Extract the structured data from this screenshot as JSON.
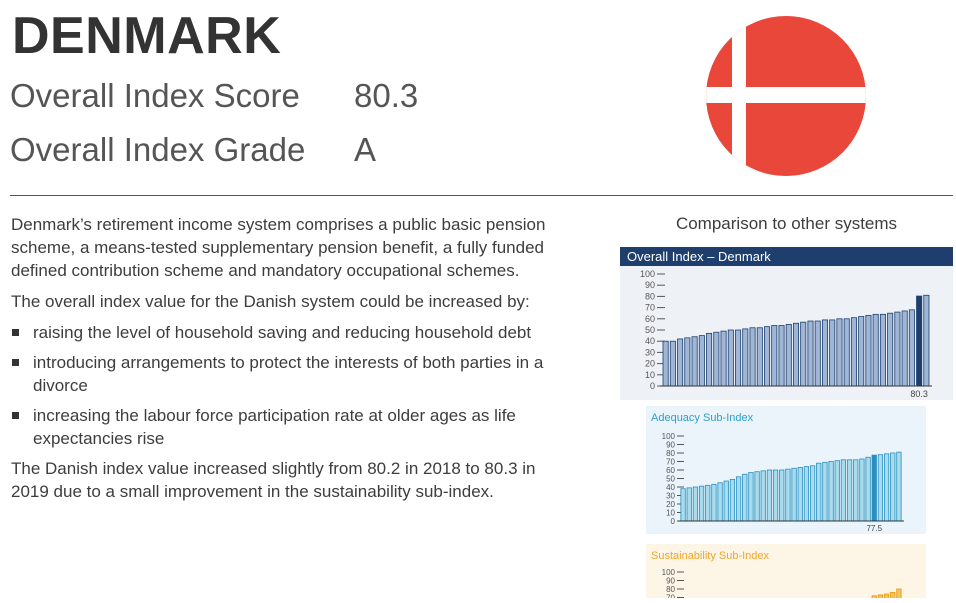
{
  "header": {
    "country": "DENMARK",
    "score_label": "Overall Index Score",
    "score_value": "80.3",
    "grade_label": "Overall Index Grade",
    "grade_value": "A"
  },
  "flag": {
    "red": "#e8473a",
    "white": "#ffffff"
  },
  "body": {
    "intro": "Denmark’s retirement income system comprises a public basic pension scheme, a means-tested supplementary pension benefit, a fully funded defined contribution scheme and mandatory occupational schemes.",
    "increase_lead": "The overall index value for the Danish system could be increased by:",
    "bullets": [
      "raising the level of household saving and reducing household debt",
      "introducing arrangements to protect the interests of both parties in a divorce",
      "increasing the labour force participation rate at older ages as life expectancies rise"
    ],
    "closing": "The Danish index value increased slightly from 80.2 in 2018 to 80.3 in 2019 due to a small improvement in the sustainability sub-index."
  },
  "comparison_title": "Comparison to other systems",
  "chart_data": [
    {
      "type": "bar",
      "title": "Overall Index – Denmark",
      "ylim": [
        0,
        100
      ],
      "yticks": [
        "100",
        "90",
        "80",
        "70",
        "60",
        "50",
        "40",
        "30",
        "20",
        "10",
        "0"
      ],
      "highlight_label": "80.3",
      "highlight_index": 35,
      "colors": {
        "bar": "#9fb6d6",
        "bar_edge": "#1e3f6e",
        "highlight": "#1e3f6e"
      },
      "values": [
        40,
        40,
        42,
        43,
        44,
        45,
        47,
        48,
        49,
        50,
        50,
        51,
        52,
        52,
        53,
        54,
        54,
        55,
        56,
        57,
        58,
        58,
        59,
        59,
        60,
        60,
        61,
        62,
        63,
        64,
        64,
        65,
        66,
        67,
        68,
        80.3,
        81
      ]
    },
    {
      "type": "bar",
      "title": "Adequacy Sub-Index",
      "ylim": [
        0,
        100
      ],
      "yticks": [
        "100",
        "90",
        "80",
        "70",
        "60",
        "50",
        "40",
        "30",
        "20",
        "10",
        "0"
      ],
      "highlight_label": "77.5",
      "highlight_index": 31,
      "colors": {
        "title": "#2e9fce",
        "bar": "#a9dbef",
        "bar_edge": "#2a8fbf",
        "highlight": "#2a8fbf"
      },
      "values": [
        38,
        39,
        40,
        41,
        42,
        43,
        45,
        47,
        49,
        52,
        55,
        57,
        58,
        59,
        60,
        60,
        60,
        61,
        62,
        63,
        64,
        65,
        68,
        69,
        70,
        71,
        72,
        72,
        72,
        73,
        75,
        77.5,
        78,
        79,
        80,
        81
      ]
    },
    {
      "type": "bar",
      "title": "Sustainability Sub-Index",
      "ylim": [
        0,
        100
      ],
      "yticks": [
        "100",
        "90",
        "80",
        "70"
      ],
      "colors": {
        "title": "#f0a42a",
        "bar": "#f6c25e",
        "bar_edge": "#e39a14"
      },
      "values": [
        0,
        0,
        0,
        0,
        0,
        0,
        0,
        0,
        0,
        0,
        0,
        0,
        0,
        0,
        0,
        0,
        0,
        0,
        0,
        0,
        0,
        0,
        0,
        0,
        0,
        0,
        0,
        0,
        0,
        0,
        0,
        72,
        73,
        74,
        76,
        80
      ]
    }
  ]
}
